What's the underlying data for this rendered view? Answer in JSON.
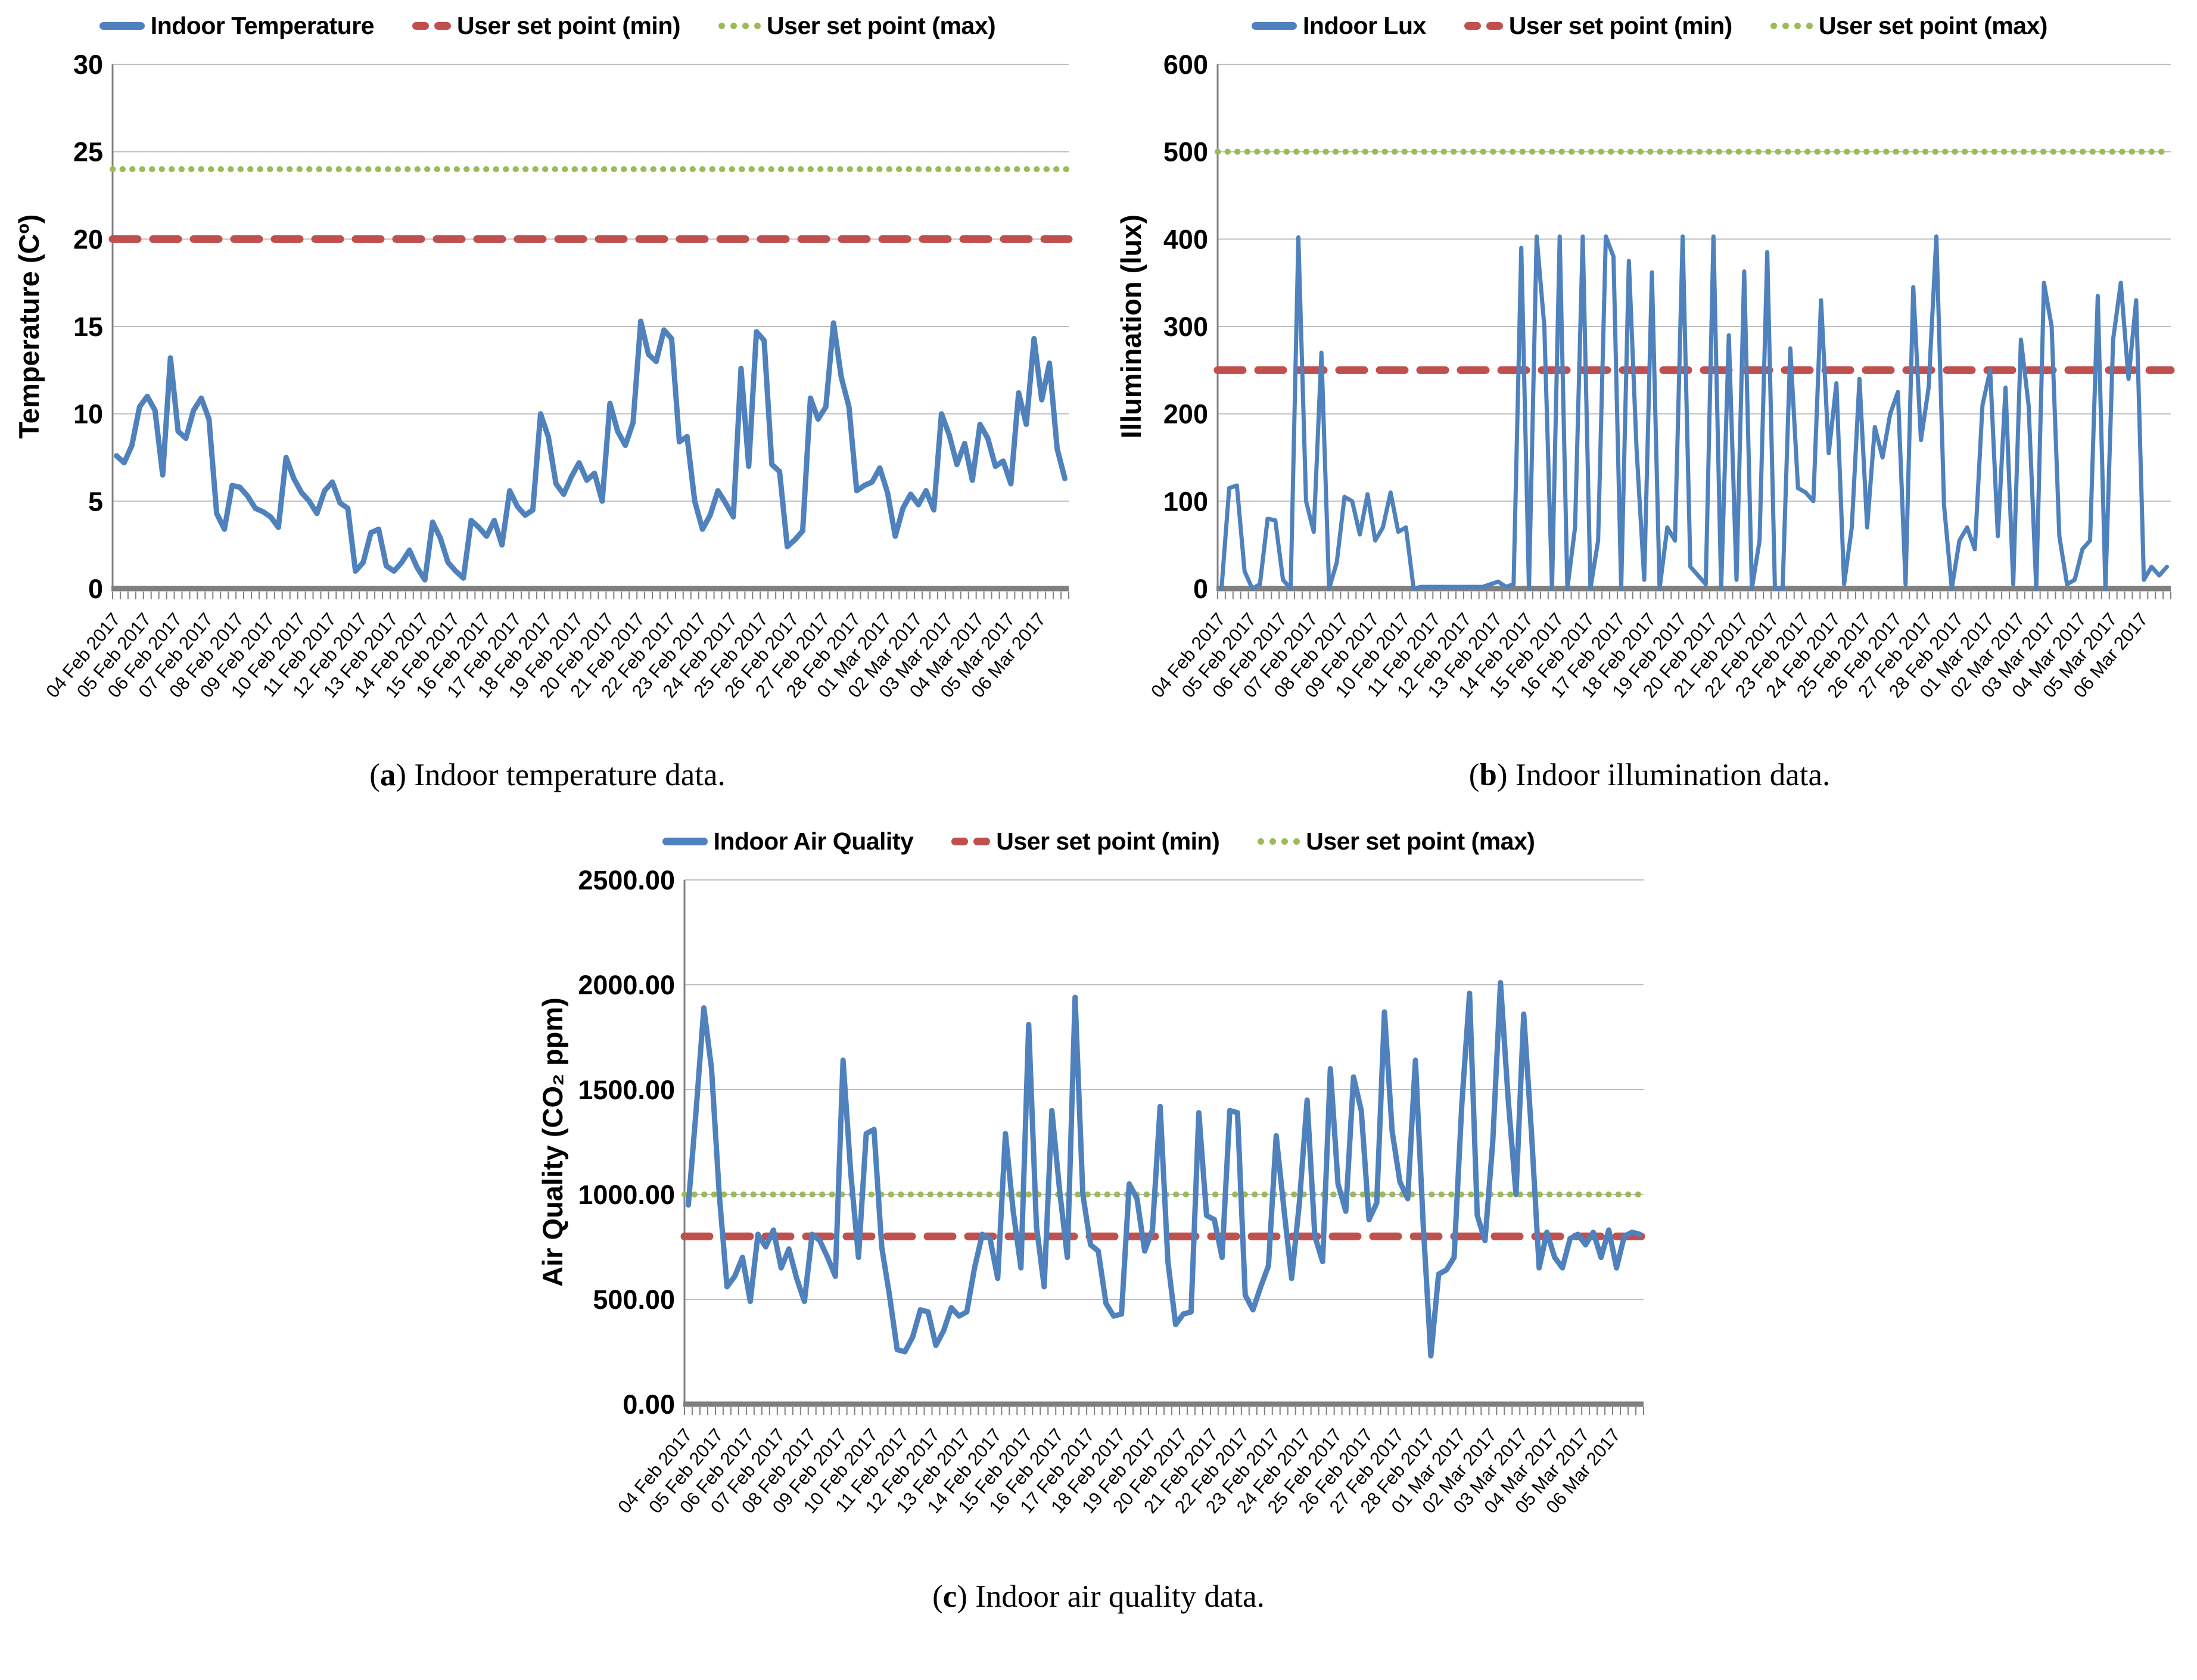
{
  "captions": [
    {
      "open": "(",
      "letter": "a",
      "close": ")",
      "text": " Indoor temperature data."
    },
    {
      "open": "(",
      "letter": "b",
      "close": ")",
      "text": " Indoor illumination data."
    },
    {
      "open": "(",
      "letter": "c",
      "close": ")",
      "text": " Indoor air quality data."
    }
  ],
  "colors": {
    "series_blue": "#4F81BD",
    "setpoint_min_red": "#C0504D",
    "setpoint_max_green": "#9BBB59",
    "gridline": "#BFBFBF",
    "axis": "#808080"
  },
  "chart_data": [
    {
      "type": "line",
      "title": "",
      "xlabel": "",
      "ylabel": "Temperature (Cº)",
      "ylim": [
        0,
        30
      ],
      "grid": true,
      "legend_position": "top",
      "yticks": [
        {
          "v": 0,
          "label": "0"
        },
        {
          "v": 5,
          "label": "5"
        },
        {
          "v": 10,
          "label": "10"
        },
        {
          "v": 15,
          "label": "15"
        },
        {
          "v": 20,
          "label": "20"
        },
        {
          "v": 25,
          "label": "25"
        },
        {
          "v": 30,
          "label": "30"
        }
      ],
      "categories": [
        "04 Feb 2017",
        "05 Feb 2017",
        "06 Feb 2017",
        "07 Feb 2017",
        "08 Feb 2017",
        "09 Feb 2017",
        "10 Feb 2017",
        "11 Feb 2017",
        "12 Feb 2017",
        "13 Feb 2017",
        "14 Feb 2017",
        "15 Feb 2017",
        "16 Feb 2017",
        "17 Feb 2017",
        "18 Feb 2017",
        "19 Feb 2017",
        "20 Feb 2017",
        "21 Feb 2017",
        "22 Feb 2017",
        "23 Feb 2017",
        "24 Feb 2017",
        "25 Feb 2017",
        "26 Feb 2017",
        "27 Feb 2017",
        "28 Feb 2017",
        "01 Mar 2017",
        "02 Mar 2017",
        "03 Mar 2017",
        "04 Mar 2017",
        "05 Mar 2017",
        "06 Mar 2017"
      ],
      "series": [
        {
          "name": "Indoor Temperature",
          "color": "#4F81BD",
          "values": [
            7.6,
            7.2,
            8.2,
            10.4,
            11.0,
            10.2,
            6.5,
            13.2,
            9.0,
            8.6,
            10.2,
            10.9,
            9.7,
            4.3,
            3.4,
            5.9,
            5.8,
            5.3,
            4.6,
            4.4,
            4.1,
            3.5,
            7.5,
            6.3,
            5.5,
            5.0,
            4.3,
            5.6,
            6.1,
            4.9,
            4.6,
            1.0,
            1.5,
            3.2,
            3.4,
            1.3,
            1.0,
            1.5,
            2.2,
            1.2,
            0.5,
            3.8,
            2.9,
            1.5,
            1.0,
            0.6,
            3.9,
            3.5,
            3.0,
            3.9,
            2.5,
            5.6,
            4.7,
            4.2,
            4.5,
            10.0,
            8.7,
            6.0,
            5.4,
            6.4,
            7.2,
            6.2,
            6.6,
            5.0,
            10.6,
            9.0,
            8.2,
            9.5,
            15.3,
            13.4,
            13.0,
            14.8,
            14.3,
            8.4,
            8.7,
            5.0,
            3.4,
            4.2,
            5.6,
            4.9,
            4.1,
            12.6,
            7.0,
            14.7,
            14.2,
            7.1,
            6.7,
            2.4,
            2.8,
            3.3,
            10.9,
            9.7,
            10.4,
            15.2,
            12.1,
            10.4,
            5.6,
            5.9,
            6.1,
            6.9,
            5.5,
            3.0,
            4.6,
            5.4,
            4.8,
            5.6,
            4.5,
            10.0,
            8.8,
            7.1,
            8.3,
            6.2,
            9.4,
            8.6,
            7.0,
            7.3,
            6.0,
            11.2,
            9.4,
            14.3,
            10.8,
            12.9,
            8.0,
            6.3
          ]
        }
      ],
      "setpoint_min": {
        "label": "User set point (min)",
        "value": 20,
        "color": "#C0504D"
      },
      "setpoint_max": {
        "label": "User set point (max)",
        "value": 24,
        "color": "#9BBB59"
      }
    },
    {
      "type": "line",
      "title": "",
      "xlabel": "",
      "ylabel": "Illumination (lux)",
      "ylim": [
        0,
        600
      ],
      "grid": true,
      "legend_position": "top",
      "yticks": [
        {
          "v": 0,
          "label": "0"
        },
        {
          "v": 100,
          "label": "100"
        },
        {
          "v": 200,
          "label": "200"
        },
        {
          "v": 300,
          "label": "300"
        },
        {
          "v": 400,
          "label": "400"
        },
        {
          "v": 500,
          "label": "500"
        },
        {
          "v": 600,
          "label": "600"
        }
      ],
      "categories": [
        "04 Feb 2017",
        "05 Feb 2017",
        "06 Feb 2017",
        "07 Feb 2017",
        "08 Feb 2017",
        "09 Feb 2017",
        "10 Feb 2017",
        "11 Feb 2017",
        "12 Feb 2017",
        "13 Feb 2017",
        "14 Feb 2017",
        "15 Feb 2017",
        "16 Feb 2017",
        "17 Feb 2017",
        "18 Feb 2017",
        "19 Feb 2017",
        "20 Feb 2017",
        "21 Feb 2017",
        "22 Feb 2017",
        "23 Feb 2017",
        "24 Feb 2017",
        "25 Feb 2017",
        "26 Feb 2017",
        "27 Feb 2017",
        "28 Feb 2017",
        "01 Mar 2017",
        "02 Mar 2017",
        "03 Mar 2017",
        "04 Mar 2017",
        "05 Mar 2017",
        "06 Mar 2017"
      ],
      "series": [
        {
          "name": "Indoor Lux",
          "color": "#4F81BD",
          "values": [
            0,
            115,
            118,
            20,
            0,
            5,
            80,
            78,
            10,
            0,
            402,
            100,
            65,
            270,
            0,
            30,
            105,
            100,
            62,
            108,
            55,
            70,
            110,
            65,
            70,
            0,
            2,
            2,
            2,
            2,
            2,
            2,
            2,
            2,
            2,
            5,
            8,
            2,
            5,
            390,
            0,
            403,
            300,
            0,
            403,
            0,
            70,
            403,
            0,
            55,
            403,
            380,
            0,
            375,
            160,
            10,
            362,
            0,
            70,
            55,
            403,
            25,
            15,
            5,
            403,
            0,
            290,
            10,
            363,
            0,
            55,
            385,
            0,
            0,
            275,
            115,
            110,
            100,
            330,
            155,
            235,
            5,
            70,
            240,
            70,
            185,
            150,
            200,
            225,
            5,
            345,
            170,
            230,
            403,
            95,
            0,
            55,
            70,
            45,
            210,
            250,
            60,
            230,
            5,
            285,
            210,
            0,
            350,
            300,
            60,
            5,
            10,
            45,
            55,
            335,
            0,
            285,
            350,
            240,
            330,
            10,
            25,
            15,
            25
          ]
        }
      ],
      "setpoint_min": {
        "label": "User set point (min)",
        "value": 250,
        "color": "#C0504D"
      },
      "setpoint_max": {
        "label": "User set point (max)",
        "value": 500,
        "color": "#9BBB59"
      }
    },
    {
      "type": "line",
      "title": "",
      "xlabel": "",
      "ylabel": "Air Quality (CO₂ ppm)",
      "ylim": [
        0,
        2500
      ],
      "grid": true,
      "legend_position": "top",
      "yticks": [
        {
          "v": 0,
          "label": "0.00"
        },
        {
          "v": 500,
          "label": "500.00"
        },
        {
          "v": 1000,
          "label": "1000.00"
        },
        {
          "v": 1500,
          "label": "1500.00"
        },
        {
          "v": 2000,
          "label": "2000.00"
        },
        {
          "v": 2500,
          "label": "2500.00"
        }
      ],
      "categories": [
        "04 Feb 2017",
        "05 Feb 2017",
        "06 Feb 2017",
        "07 Feb 2017",
        "08 Feb 2017",
        "09 Feb 2017",
        "10 Feb 2017",
        "11 Feb 2017",
        "12 Feb 2017",
        "13 Feb 2017",
        "14 Feb 2017",
        "15 Feb 2017",
        "16 Feb 2017",
        "17 Feb 2017",
        "18 Feb 2017",
        "19 Feb 2017",
        "20 Feb 2017",
        "21 Feb 2017",
        "22 Feb 2017",
        "23 Feb 2017",
        "24 Feb 2017",
        "25 Feb 2017",
        "26 Feb 2017",
        "27 Feb 2017",
        "28 Feb 2017",
        "01 Mar 2017",
        "02 Mar 2017",
        "03 Mar 2017",
        "04 Mar 2017",
        "05 Mar 2017",
        "06 Mar 2017"
      ],
      "series": [
        {
          "name": "Indoor Air Quality",
          "color": "#4F81BD",
          "values": [
            950,
            1400,
            1890,
            1600,
            1000,
            560,
            610,
            700,
            490,
            810,
            750,
            830,
            650,
            740,
            600,
            490,
            810,
            780,
            700,
            610,
            1640,
            1100,
            700,
            1290,
            1310,
            750,
            520,
            260,
            250,
            320,
            450,
            440,
            280,
            350,
            460,
            420,
            440,
            650,
            810,
            790,
            600,
            1290,
            920,
            650,
            1810,
            850,
            560,
            1400,
            1020,
            700,
            1940,
            1000,
            760,
            730,
            480,
            420,
            430,
            1050,
            980,
            730,
            830,
            1420,
            680,
            380,
            430,
            440,
            1390,
            900,
            880,
            700,
            1400,
            1390,
            520,
            450,
            560,
            660,
            1280,
            930,
            600,
            960,
            1450,
            800,
            680,
            1600,
            1050,
            920,
            1560,
            1400,
            880,
            960,
            1870,
            1300,
            1060,
            980,
            1640,
            860,
            230,
            620,
            640,
            700,
            1430,
            1960,
            900,
            780,
            1250,
            2010,
            1450,
            1000,
            1860,
            1300,
            650,
            820,
            700,
            650,
            790,
            810,
            760,
            820,
            700,
            830,
            650,
            800,
            820,
            810
          ]
        }
      ],
      "setpoint_min": {
        "label": "User set point (min)",
        "value": 800,
        "color": "#C0504D"
      },
      "setpoint_max": {
        "label": "User set point (max)",
        "value": 1000,
        "color": "#9BBB59"
      }
    }
  ]
}
